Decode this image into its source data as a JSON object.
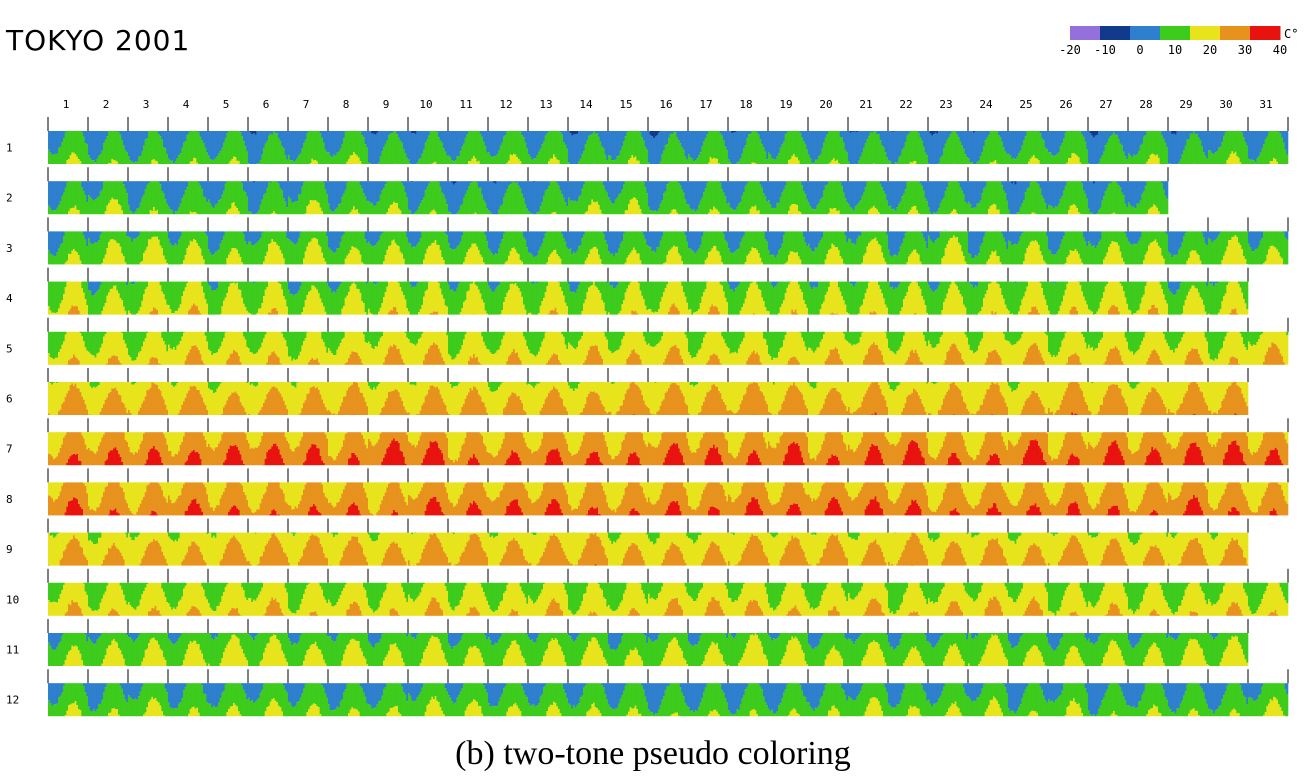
{
  "title": "TOKYO 2001",
  "caption": "(b) two-tone pseudo coloring",
  "legend": {
    "unit": "C°",
    "ticks": [
      "-20",
      "-10",
      "0",
      "10",
      "20",
      "30",
      "40"
    ],
    "band_colors": [
      "#9370DB",
      "#123A8C",
      "#2E7FCE",
      "#3DCB1C",
      "#E8E41C",
      "#E8921E",
      "#E8130F"
    ]
  },
  "chart_data": {
    "type": "heatmap",
    "title": "TOKYO 2001",
    "x_label_ticks": [
      "1",
      "2",
      "3",
      "4",
      "5",
      "6",
      "7",
      "8",
      "9",
      "10",
      "11",
      "12",
      "13",
      "14",
      "15",
      "16",
      "17",
      "18",
      "19",
      "20",
      "21",
      "22",
      "23",
      "24",
      "25",
      "26",
      "27",
      "28",
      "29",
      "30",
      "31"
    ],
    "y_label_ticks": [
      "1",
      "2",
      "3",
      "4",
      "5",
      "6",
      "7",
      "8",
      "9",
      "10",
      "11",
      "12"
    ],
    "color_scale": {
      "min": -20,
      "max": 40,
      "step": 10,
      "unit": "C°"
    },
    "days_in_month": [
      31,
      28,
      31,
      30,
      31,
      30,
      31,
      31,
      30,
      31,
      30,
      31
    ],
    "monthly_temperature_band_C": [
      {
        "month": "1",
        "low": 0,
        "high": 12
      },
      {
        "month": "2",
        "low": 1,
        "high": 13
      },
      {
        "month": "3",
        "low": 4,
        "high": 17
      },
      {
        "month": "4",
        "low": 8,
        "high": 22
      },
      {
        "month": "5",
        "low": 13,
        "high": 25
      },
      {
        "month": "6",
        "low": 18,
        "high": 29
      },
      {
        "month": "7",
        "low": 23,
        "high": 36
      },
      {
        "month": "8",
        "low": 22,
        "high": 34
      },
      {
        "month": "9",
        "low": 18,
        "high": 29
      },
      {
        "month": "10",
        "low": 12,
        "high": 24
      },
      {
        "month": "11",
        "low": 6,
        "high": 18
      },
      {
        "month": "12",
        "low": 2,
        "high": 14
      }
    ]
  }
}
